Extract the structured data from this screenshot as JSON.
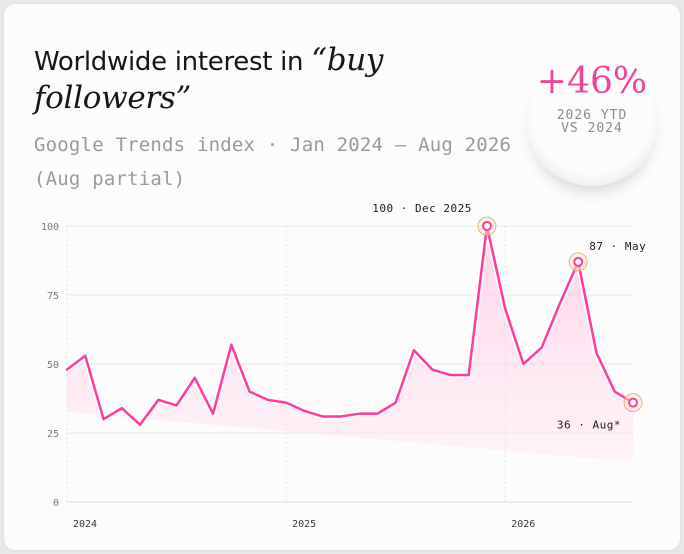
{
  "title": {
    "prefix": "Worldwide interest in ",
    "emphasis_line1": "“buy",
    "emphasis_line2": "followers”"
  },
  "subtitle": "Google Trends index · Jan 2024 – Aug 2026 (Aug partial)",
  "badge": {
    "value": "+46%",
    "label_line1": "2026 YTD",
    "label_line2": "VS 2024"
  },
  "colors": {
    "accent": "#f0449b",
    "line": "#ff3aa0",
    "fill": "#ffd0e6",
    "grid": "#e7e7e7",
    "text": "#161616"
  },
  "chart_data": {
    "type": "line",
    "x": [
      "2024-01",
      "2024-02",
      "2024-03",
      "2024-04",
      "2024-05",
      "2024-06",
      "2024-07",
      "2024-08",
      "2024-09",
      "2024-10",
      "2024-11",
      "2024-12",
      "2025-01",
      "2025-02",
      "2025-03",
      "2025-04",
      "2025-05",
      "2025-06",
      "2025-07",
      "2025-08",
      "2025-09",
      "2025-10",
      "2025-11",
      "2025-12",
      "2026-01",
      "2026-02",
      "2026-03",
      "2026-04",
      "2026-05",
      "2026-06",
      "2026-07",
      "2026-08"
    ],
    "values": [
      48,
      53,
      30,
      34,
      28,
      37,
      35,
      45,
      32,
      57,
      40,
      37,
      36,
      33,
      31,
      31,
      32,
      32,
      36,
      55,
      48,
      46,
      46,
      100,
      70,
      50,
      56,
      72,
      87,
      54,
      40,
      36
    ],
    "ylim": [
      0,
      100
    ],
    "yticks": [
      "0",
      "25",
      "50",
      "75",
      "100"
    ],
    "xticks": [
      {
        "label": "2024",
        "index": 0
      },
      {
        "label": "2025",
        "index": 12
      },
      {
        "label": "2026",
        "index": 24
      }
    ],
    "annotations": [
      {
        "index": 23,
        "text": "100 · Dec 2025"
      },
      {
        "index": 28,
        "text": "87 · May"
      },
      {
        "index": 31,
        "text": "36 · Aug*"
      }
    ],
    "grid": true,
    "partial_last_point": true
  }
}
